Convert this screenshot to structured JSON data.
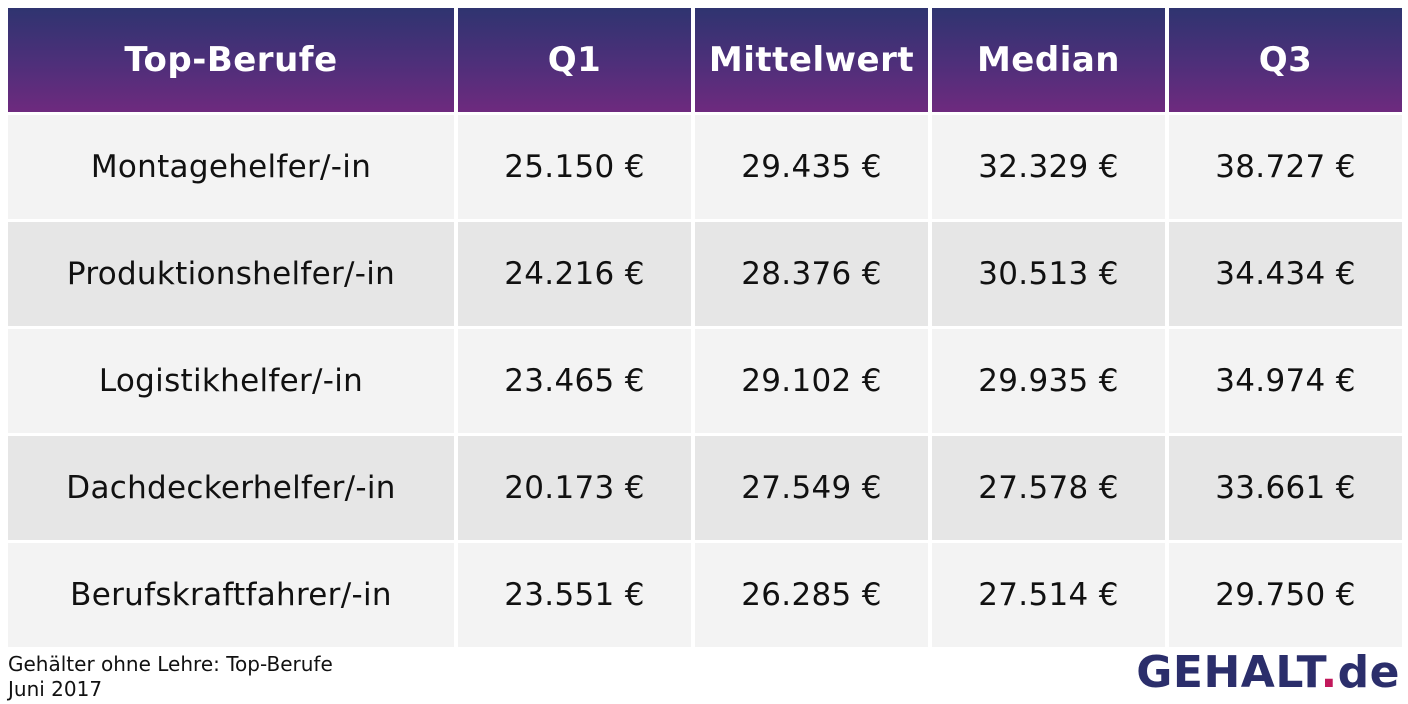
{
  "chart_data": {
    "type": "table",
    "columns": [
      "Top-Berufe",
      "Q1",
      "Mittelwert",
      "Median",
      "Q3"
    ],
    "rows": [
      [
        "Montagehelfer/-in",
        "25.150 €",
        "29.435 €",
        "32.329 €",
        "38.727 €"
      ],
      [
        "Produktionshelfer/-in",
        "24.216 €",
        "28.376 €",
        "30.513 €",
        "34.434 €"
      ],
      [
        "Logistikhelfer/-in",
        "23.465 €",
        "29.102 €",
        "29.935 €",
        "34.974 €"
      ],
      [
        "Dachdeckerhelfer/-in",
        "20.173 €",
        "27.549 €",
        "27.578 €",
        "33.661 €"
      ],
      [
        "Berufskraftfahrer/-in",
        "23.551 €",
        "26.285 €",
        "27.514 €",
        "29.750 €"
      ]
    ]
  },
  "footer": {
    "caption": "Gehälter ohne Lehre: Top-Berufe",
    "date": "Juni 2017"
  },
  "logo": {
    "name": "GEHALT",
    "dot": ".",
    "tld": "de"
  },
  "colors": {
    "header_top": "#2f3470",
    "header_bottom": "#6e2a7e",
    "row_light": "#f3f3f3",
    "row_dark": "#e6e6e6",
    "logo_text": "#2b2e6b",
    "logo_dot": "#c2185b"
  }
}
